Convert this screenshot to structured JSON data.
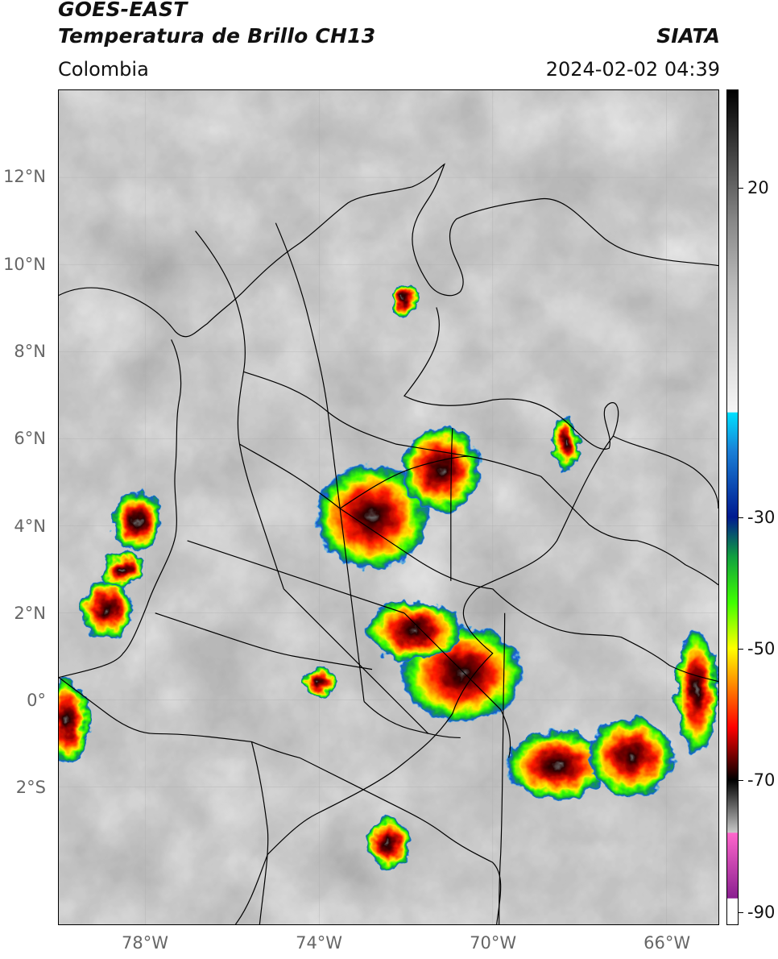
{
  "header": {
    "satellite": "GOES-EAST",
    "product": "Temperatura de Brillo CH13",
    "organization": "SIATA",
    "region": "Colombia",
    "datetime": "2024-02-02 04:39"
  },
  "map": {
    "lon_range": [
      -80,
      -64.8
    ],
    "lat_range": [
      -5.15,
      14.0
    ],
    "lat_ticks": [
      {
        "value": 12,
        "label": "12°N"
      },
      {
        "value": 10,
        "label": "10°N"
      },
      {
        "value": 8,
        "label": "8°N"
      },
      {
        "value": 6,
        "label": "6°N"
      },
      {
        "value": 4,
        "label": "4°N"
      },
      {
        "value": 2,
        "label": "2°N"
      },
      {
        "value": 0,
        "label": "0°"
      },
      {
        "value": -2,
        "label": "2°S"
      }
    ],
    "lon_ticks": [
      {
        "value": -78,
        "label": "78°W"
      },
      {
        "value": -74,
        "label": "74°W"
      },
      {
        "value": -70,
        "label": "70°W"
      },
      {
        "value": -66,
        "label": "66°W"
      }
    ],
    "background_color": "#8a8a8a",
    "boundary_color": "#000000",
    "storm_cells": [
      {
        "lon": -72.8,
        "lat": 4.2,
        "rx": 1.3,
        "ry": 1.2
      },
      {
        "lon": -71.2,
        "lat": 5.3,
        "rx": 0.9,
        "ry": 1.0
      },
      {
        "lon": -70.7,
        "lat": 0.6,
        "rx": 1.4,
        "ry": 1.1
      },
      {
        "lon": -71.8,
        "lat": 1.6,
        "rx": 1.1,
        "ry": 0.7
      },
      {
        "lon": -78.2,
        "lat": 4.1,
        "rx": 0.6,
        "ry": 0.7
      },
      {
        "lon": -78.9,
        "lat": 2.1,
        "rx": 0.6,
        "ry": 0.7
      },
      {
        "lon": -79.8,
        "lat": -0.5,
        "rx": 0.5,
        "ry": 1.0
      },
      {
        "lon": -72.4,
        "lat": -3.3,
        "rx": 0.5,
        "ry": 0.6
      },
      {
        "lon": -74.0,
        "lat": 0.4,
        "rx": 0.4,
        "ry": 0.35
      },
      {
        "lon": -68.3,
        "lat": 5.9,
        "rx": 0.35,
        "ry": 0.6
      },
      {
        "lon": -72.0,
        "lat": 9.2,
        "rx": 0.3,
        "ry": 0.4
      },
      {
        "lon": -68.5,
        "lat": -1.5,
        "rx": 1.2,
        "ry": 0.8
      },
      {
        "lon": -66.8,
        "lat": -1.3,
        "rx": 1.0,
        "ry": 0.9
      },
      {
        "lon": -65.3,
        "lat": 0.2,
        "rx": 0.5,
        "ry": 1.4
      },
      {
        "lon": -78.5,
        "lat": 3.0,
        "rx": 0.5,
        "ry": 0.4
      }
    ]
  },
  "colorbar": {
    "unit": "",
    "range": [
      -92,
      35
    ],
    "ticks": [
      {
        "value": 20,
        "label": "20"
      },
      {
        "value": -30,
        "label": "-30"
      },
      {
        "value": -50,
        "label": "-50"
      },
      {
        "value": -70,
        "label": "-70"
      },
      {
        "value": -90,
        "label": "-90"
      }
    ],
    "stops": [
      {
        "value": 35,
        "color": "#000000"
      },
      {
        "value": 25,
        "color": "#444444"
      },
      {
        "value": 15,
        "color": "#888888"
      },
      {
        "value": 5,
        "color": "#bbbbbb"
      },
      {
        "value": -14,
        "color": "#f6f6f6"
      },
      {
        "value": -14.1,
        "color": "#00e0ff"
      },
      {
        "value": -20,
        "color": "#1a7fd6"
      },
      {
        "value": -30,
        "color": "#001a90"
      },
      {
        "value": -36,
        "color": "#10a040"
      },
      {
        "value": -43,
        "color": "#40ff00"
      },
      {
        "value": -50,
        "color": "#ffff00"
      },
      {
        "value": -56,
        "color": "#ff7f00"
      },
      {
        "value": -62,
        "color": "#ff0000"
      },
      {
        "value": -68,
        "color": "#400000"
      },
      {
        "value": -70,
        "color": "#000000"
      },
      {
        "value": -78,
        "color": "#c8c8c8"
      },
      {
        "value": -78.1,
        "color": "#ff66cc"
      },
      {
        "value": -88,
        "color": "#8a2090"
      },
      {
        "value": -88.1,
        "color": "#ffffff"
      },
      {
        "value": -92,
        "color": "#ffffff"
      }
    ]
  }
}
